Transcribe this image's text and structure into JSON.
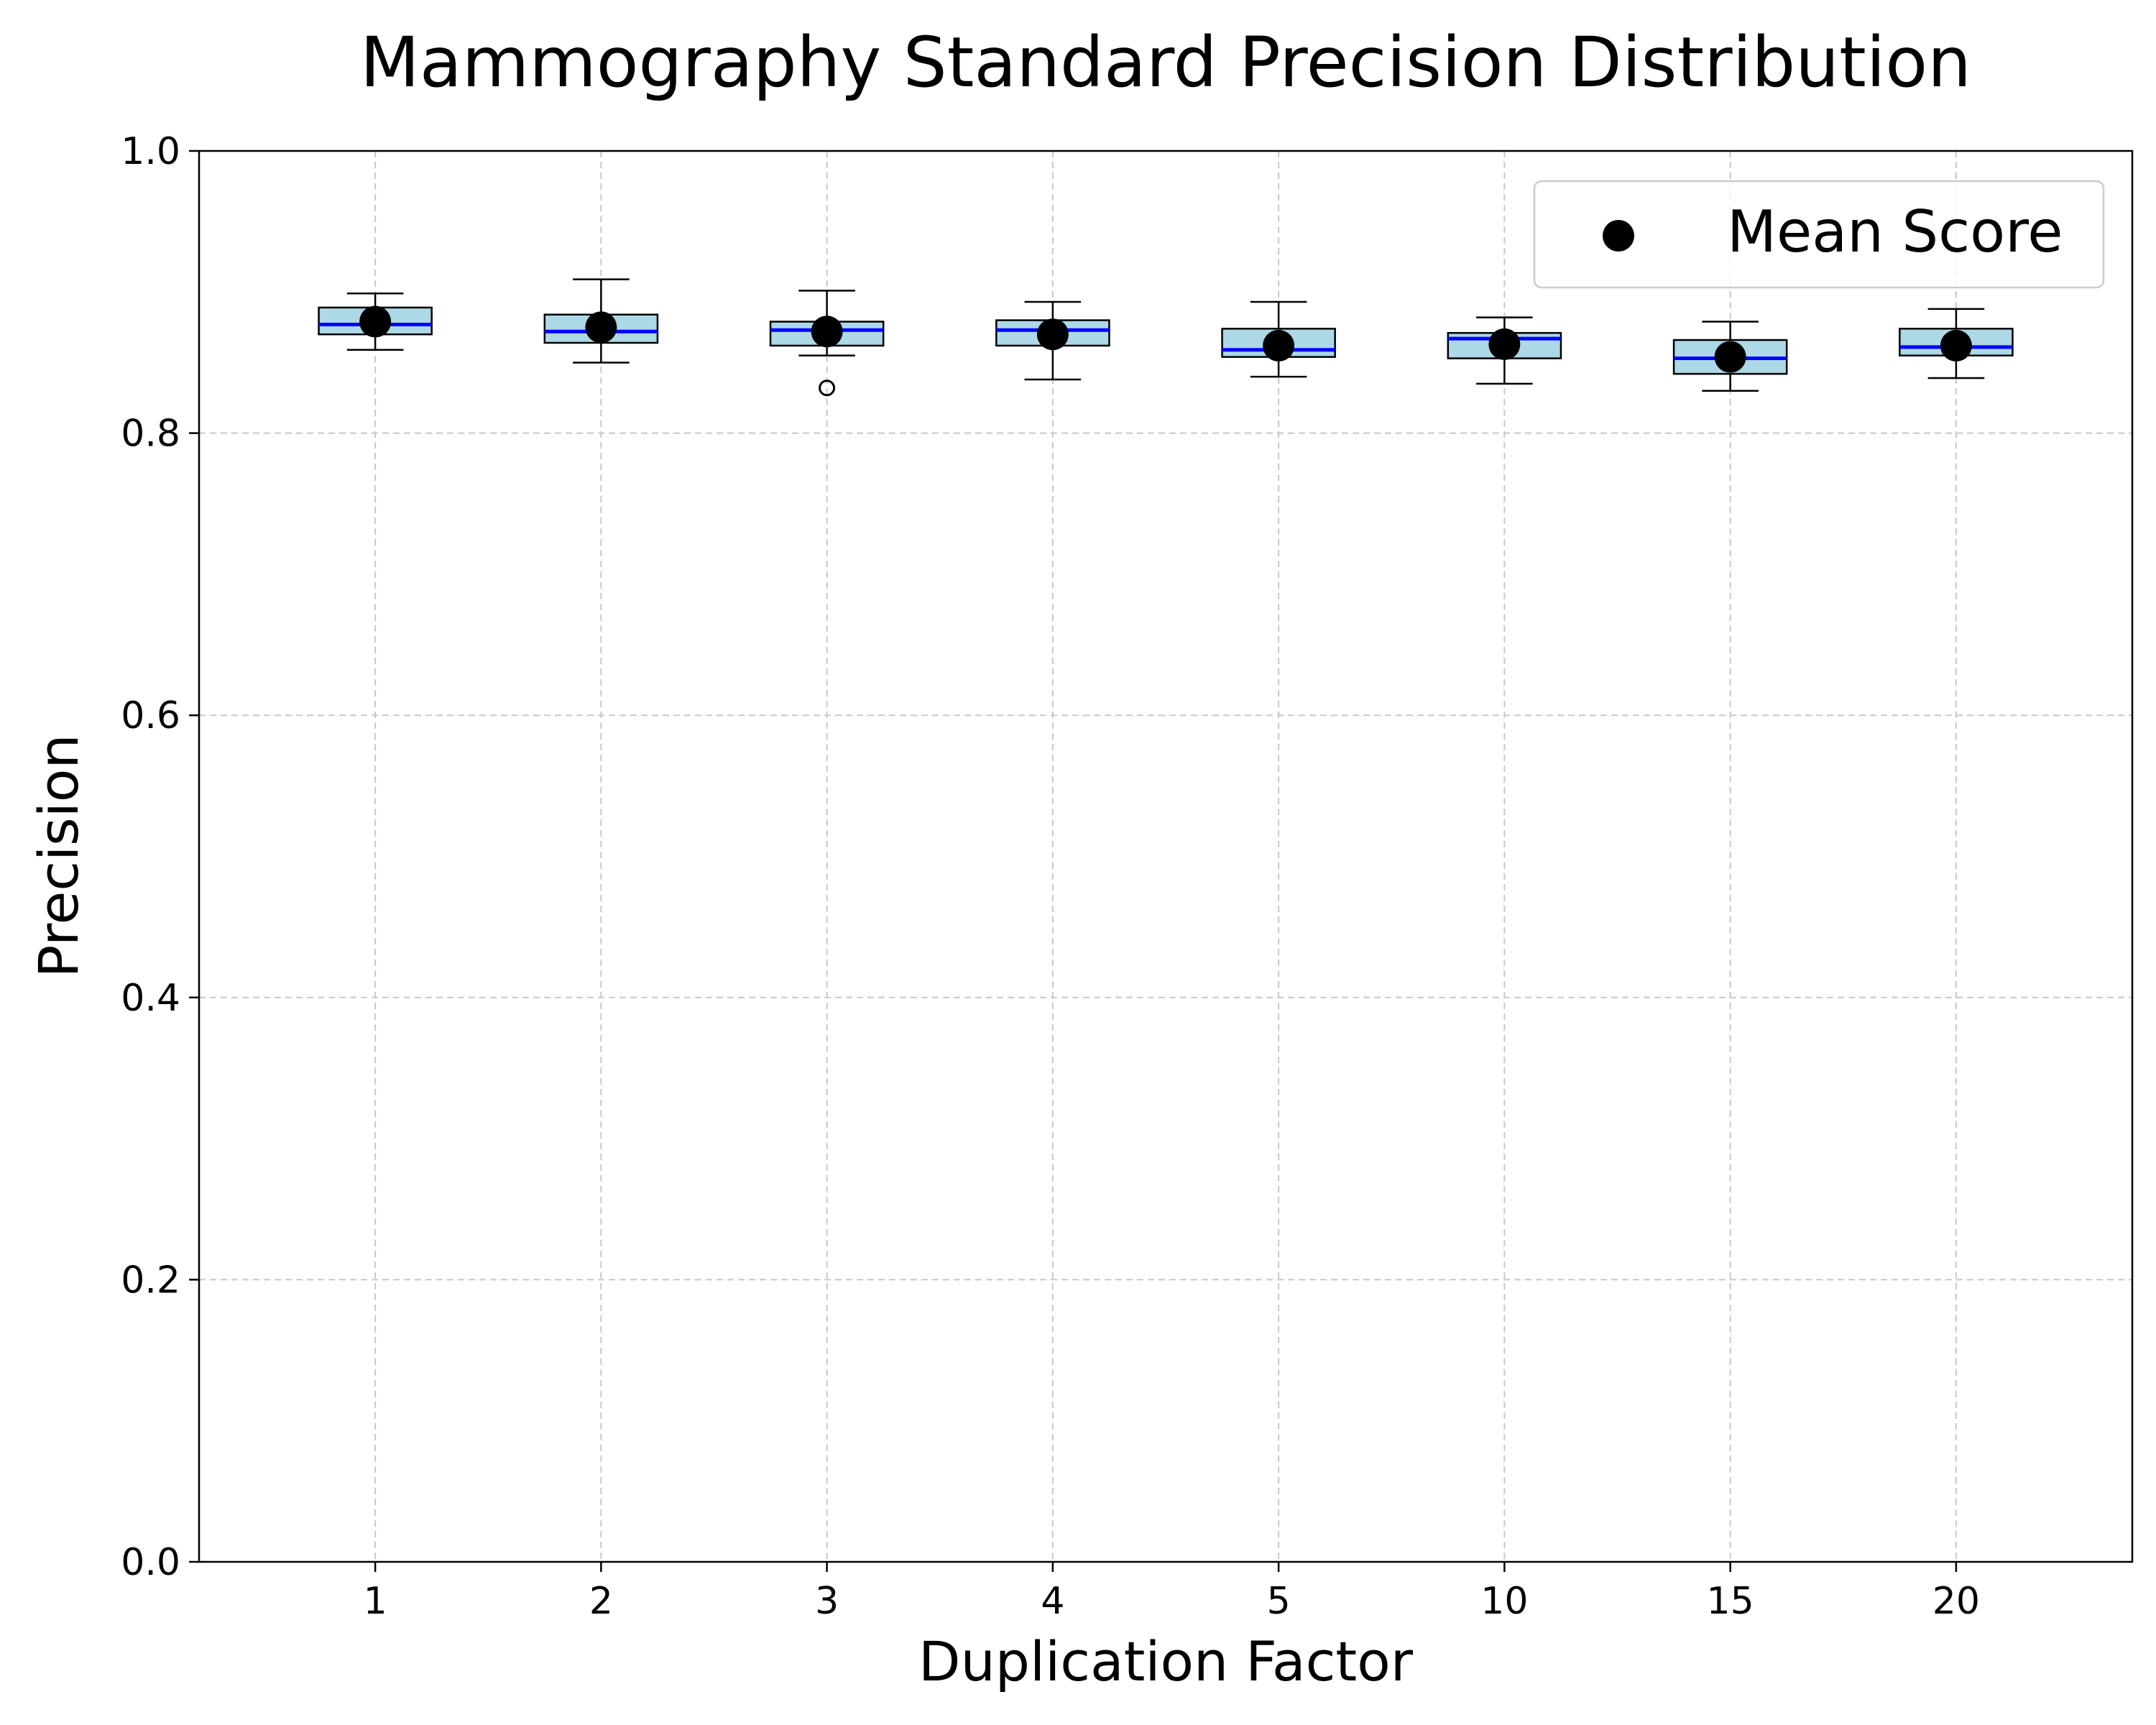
{
  "chart_data": {
    "type": "box",
    "title": "Mammography Standard Precision Distribution",
    "xlabel": "Duplication Factor",
    "ylabel": "Precision",
    "ylim": [
      0.0,
      1.0
    ],
    "yticks": [
      "0.0",
      "0.2",
      "0.4",
      "0.6",
      "0.8",
      "1.0"
    ],
    "categories": [
      "1",
      "2",
      "3",
      "4",
      "5",
      "10",
      "15",
      "20"
    ],
    "boxes": [
      {
        "whisker_low": 0.859,
        "q1": 0.87,
        "median": 0.877,
        "q3": 0.889,
        "whisker_high": 0.899,
        "mean": 0.879,
        "outliers": []
      },
      {
        "whisker_low": 0.85,
        "q1": 0.864,
        "median": 0.872,
        "q3": 0.884,
        "whisker_high": 0.909,
        "mean": 0.875,
        "outliers": []
      },
      {
        "whisker_low": 0.855,
        "q1": 0.862,
        "median": 0.873,
        "q3": 0.879,
        "whisker_high": 0.901,
        "mean": 0.872,
        "outliers": [
          0.832
        ]
      },
      {
        "whisker_low": 0.838,
        "q1": 0.862,
        "median": 0.873,
        "q3": 0.88,
        "whisker_high": 0.893,
        "mean": 0.87,
        "outliers": []
      },
      {
        "whisker_low": 0.84,
        "q1": 0.854,
        "median": 0.859,
        "q3": 0.874,
        "whisker_high": 0.893,
        "mean": 0.862,
        "outliers": []
      },
      {
        "whisker_low": 0.835,
        "q1": 0.853,
        "median": 0.867,
        "q3": 0.871,
        "whisker_high": 0.882,
        "mean": 0.863,
        "outliers": []
      },
      {
        "whisker_low": 0.83,
        "q1": 0.842,
        "median": 0.853,
        "q3": 0.866,
        "whisker_high": 0.879,
        "mean": 0.854,
        "outliers": []
      },
      {
        "whisker_low": 0.839,
        "q1": 0.855,
        "median": 0.861,
        "q3": 0.874,
        "whisker_high": 0.888,
        "mean": 0.862,
        "outliers": []
      }
    ],
    "legend": {
      "position": "top-right",
      "entries": [
        "Mean Score"
      ]
    },
    "grid": true,
    "colors": {
      "box_fill": "#add8e6",
      "median": "#0000ff",
      "mean": "#000000",
      "grid": "#c8c8c8"
    }
  }
}
